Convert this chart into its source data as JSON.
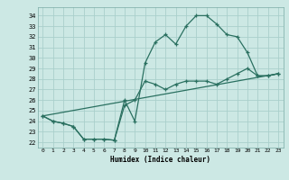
{
  "xlabel": "Humidex (Indice chaleur)",
  "bg_color": "#cce8e4",
  "grid_color": "#aacfcb",
  "line_color": "#2a7060",
  "xlim": [
    -0.5,
    23.5
  ],
  "ylim": [
    21.5,
    34.8
  ],
  "xticks": [
    0,
    1,
    2,
    3,
    4,
    5,
    6,
    7,
    8,
    9,
    10,
    11,
    12,
    13,
    14,
    15,
    16,
    17,
    18,
    19,
    20,
    21,
    22,
    23
  ],
  "yticks": [
    22,
    23,
    24,
    25,
    26,
    27,
    28,
    29,
    30,
    31,
    32,
    33,
    34
  ],
  "line1_x": [
    0,
    1,
    2,
    3,
    4,
    5,
    6,
    7,
    8,
    9,
    10,
    11,
    12,
    13,
    14,
    15,
    16,
    17,
    18,
    19,
    20,
    21,
    22,
    23
  ],
  "line1_y": [
    24.5,
    24.0,
    23.8,
    23.5,
    22.3,
    22.3,
    22.3,
    22.2,
    26.0,
    24.0,
    29.5,
    31.5,
    32.2,
    31.3,
    33.0,
    34.0,
    34.0,
    33.2,
    32.2,
    32.0,
    30.5,
    28.3,
    28.3,
    28.5
  ],
  "line2_x": [
    0,
    1,
    2,
    3,
    4,
    5,
    6,
    7,
    8,
    9,
    10,
    11,
    12,
    13,
    14,
    15,
    16,
    17,
    18,
    19,
    20,
    21,
    22,
    23
  ],
  "line2_y": [
    24.5,
    24.0,
    23.8,
    23.5,
    22.3,
    22.3,
    22.3,
    22.2,
    25.5,
    26.0,
    27.8,
    27.5,
    27.0,
    27.5,
    27.8,
    27.8,
    27.8,
    27.5,
    28.0,
    28.5,
    29.0,
    28.3,
    28.3,
    28.5
  ],
  "line3_x": [
    0,
    23
  ],
  "line3_y": [
    24.5,
    28.5
  ]
}
